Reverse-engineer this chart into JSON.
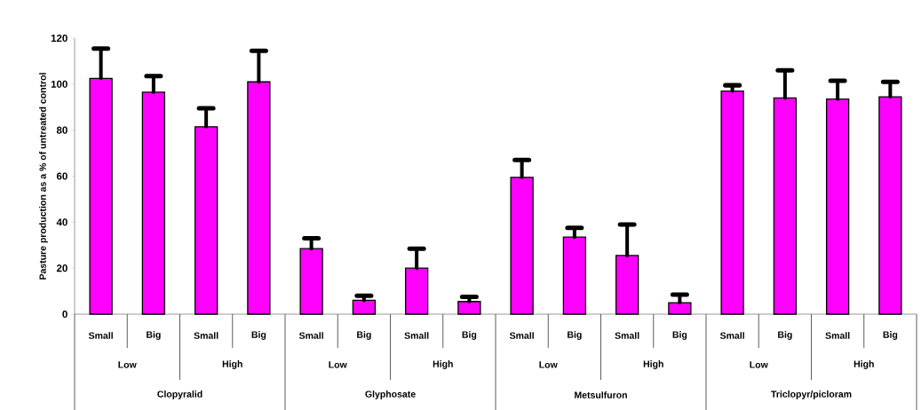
{
  "chart_data": {
    "type": "bar",
    "ylabel": "Pasture production as a % of untreated control",
    "categories": [
      "Small",
      "Big",
      "Small",
      "Big",
      "Small",
      "Big",
      "Small",
      "Big",
      "Small",
      "Big",
      "Small",
      "Big",
      "Small",
      "Big",
      "Small",
      "Big"
    ],
    "values": [
      102.5,
      96.5,
      81.5,
      101,
      28.5,
      6,
      20,
      5.5,
      59.5,
      33.5,
      25.5,
      5,
      97,
      94,
      93.5,
      94.5
    ],
    "errors": [
      [
        102.5,
        115.5
      ],
      [
        96.5,
        103.5
      ],
      [
        81.5,
        89.5
      ],
      [
        101,
        114.5
      ],
      [
        28.5,
        33
      ],
      [
        6,
        8
      ],
      [
        20,
        28.5
      ],
      [
        5.5,
        7.5
      ],
      [
        59.5,
        67
      ],
      [
        33.5,
        37.5
      ],
      [
        25.5,
        39
      ],
      [
        5,
        8.5
      ],
      [
        97,
        99.5
      ],
      [
        94,
        106
      ],
      [
        93.5,
        101.5
      ],
      [
        94.5,
        101
      ]
    ],
    "color": "#ff00ff",
    "ylim": [
      0,
      120
    ],
    "yticks": [
      0,
      20,
      40,
      60,
      80,
      100,
      120
    ],
    "annotations": [
      "Low",
      "High",
      "Low",
      "High",
      "Low",
      "High",
      "Low",
      "High",
      "Clopyralid",
      "Glyphosate",
      "Metsulfuron",
      "Triclopyr/picloram"
    ],
    "grid": false
  }
}
